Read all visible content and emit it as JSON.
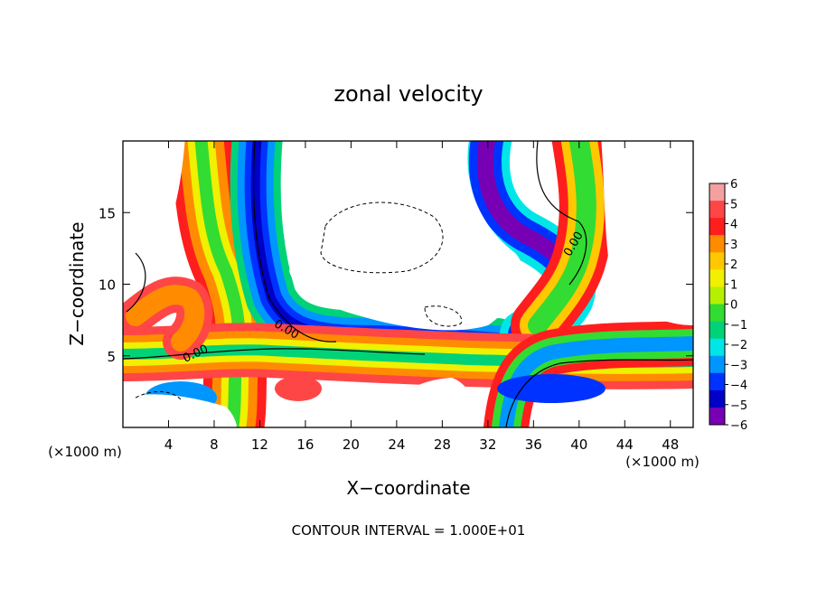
{
  "chart_data": {
    "type": "heatmap",
    "title": "zonal velocity",
    "xlabel": "X−coordinate",
    "ylabel": "Z−coordinate",
    "x_unit_label": "(×1000 m)",
    "y_unit_label": "(×1000 m)",
    "footer": "CONTOUR INTERVAL = 1.000E+01",
    "xlim": [
      0,
      50
    ],
    "ylim": [
      0,
      20
    ],
    "x_ticks": [
      4,
      8,
      12,
      16,
      20,
      24,
      28,
      32,
      36,
      40,
      44,
      48
    ],
    "y_ticks": [
      5,
      10,
      15
    ],
    "colorbar": {
      "ticks": [
        "6",
        "5",
        "4",
        "3",
        "2",
        "1",
        "0",
        "−1",
        "−2",
        "−3",
        "−4",
        "−5",
        "−6"
      ],
      "range": [
        -6,
        6
      ],
      "colors": [
        "#f4a0a0",
        "#ff4646",
        "#ff1e1e",
        "#ff8c00",
        "#ffc800",
        "#f0f000",
        "#b4f000",
        "#32dc32",
        "#00d278",
        "#00e6e6",
        "#0096ff",
        "#0032ff",
        "#0000c8",
        "#7800b4"
      ]
    },
    "contour_labels": [
      "0.00",
      "0.00",
      "0.00"
    ]
  }
}
